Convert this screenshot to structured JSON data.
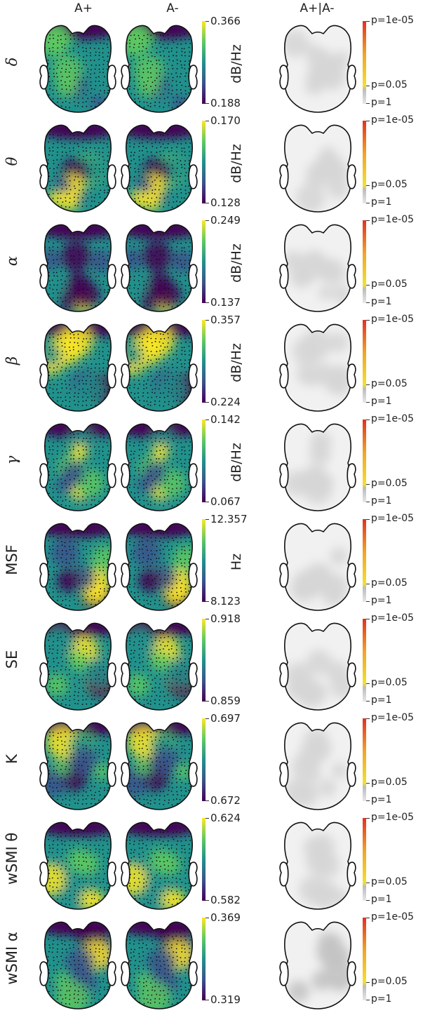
{
  "columns": [
    "A+",
    "A-",
    "A+|A-"
  ],
  "p_labels": [
    "p=1e-05",
    "p=0.05",
    "p=1"
  ],
  "rows": [
    {
      "label": "δ",
      "greek": true,
      "max": "0.366",
      "min": "0.188",
      "unit": "dB/Hz"
    },
    {
      "label": "θ",
      "greek": true,
      "max": "0.170",
      "min": "0.128",
      "unit": "dB/Hz"
    },
    {
      "label": "α",
      "greek": true,
      "max": "0.249",
      "min": "0.137",
      "unit": "dB/Hz"
    },
    {
      "label": "β",
      "greek": true,
      "max": "0.357",
      "min": "0.224",
      "unit": "dB/Hz"
    },
    {
      "label": "γ",
      "greek": true,
      "max": "0.142",
      "min": "0.067",
      "unit": "dB/Hz"
    },
    {
      "label": "MSF",
      "greek": false,
      "max": "12.357",
      "min": "8.123",
      "unit": "Hz"
    },
    {
      "label": "SE",
      "greek": false,
      "max": "0.918",
      "min": "0.859",
      "unit": ""
    },
    {
      "label": "K",
      "greek": false,
      "max": "0.697",
      "min": "0.672",
      "unit": ""
    },
    {
      "label": "wSMI θ",
      "greek": false,
      "max": "0.624",
      "min": "0.582",
      "unit": ""
    },
    {
      "label": "wSMI α",
      "greek": false,
      "max": "0.369",
      "min": "0.319",
      "unit": ""
    }
  ],
  "colors": {
    "viridis": [
      "#440154",
      "#3b528b",
      "#21918c",
      "#5ec962",
      "#fde725"
    ],
    "pvalue": [
      "#e6e6e6",
      "#bdbdbd",
      "#f2e12c",
      "#f2a428",
      "#e32f22"
    ]
  }
}
